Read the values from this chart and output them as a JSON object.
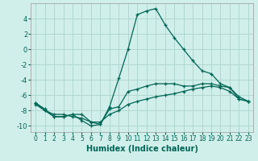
{
  "xlabel": "Humidex (Indice chaleur)",
  "xlim": [
    -0.5,
    23.5
  ],
  "ylim": [
    -10.8,
    6.0
  ],
  "yticks": [
    -10,
    -8,
    -6,
    -4,
    -2,
    0,
    2,
    4
  ],
  "xticks": [
    0,
    1,
    2,
    3,
    4,
    5,
    6,
    7,
    8,
    9,
    10,
    11,
    12,
    13,
    14,
    15,
    16,
    17,
    18,
    19,
    20,
    21,
    22,
    23
  ],
  "background_color": "#d0eeea",
  "grid_color": "#b0d8d0",
  "line_color": "#006655",
  "lines": [
    {
      "x": [
        0,
        1,
        2,
        3,
        4,
        5,
        6,
        7,
        8,
        9,
        10,
        11,
        12,
        13,
        14,
        15,
        16,
        17,
        18,
        19,
        20,
        21,
        22,
        23
      ],
      "y": [
        -7.0,
        -8.0,
        -8.8,
        -8.8,
        -8.5,
        -9.3,
        -10.0,
        -9.8,
        -7.5,
        -3.8,
        0.0,
        4.5,
        5.0,
        5.3,
        3.2,
        1.5,
        0.0,
        -1.5,
        -2.8,
        -3.2,
        -4.5,
        -5.0,
        -6.5,
        -6.8
      ]
    },
    {
      "x": [
        0,
        1,
        2,
        3,
        4,
        5,
        6,
        7,
        8,
        9,
        10,
        11,
        12,
        13,
        14,
        15,
        16,
        17,
        18,
        19,
        20,
        21,
        22,
        23
      ],
      "y": [
        -7.0,
        -7.8,
        -8.8,
        -8.8,
        -8.5,
        -8.5,
        -9.5,
        -9.8,
        -7.8,
        -7.5,
        -5.5,
        -5.2,
        -4.8,
        -4.5,
        -4.5,
        -4.5,
        -4.8,
        -4.8,
        -4.5,
        -4.5,
        -4.8,
        -5.0,
        -6.2,
        -6.8
      ]
    },
    {
      "x": [
        0,
        1,
        2,
        3,
        4,
        5,
        6,
        7,
        8,
        9,
        10,
        11,
        12,
        13,
        14,
        15,
        16,
        17,
        18,
        19,
        20,
        21,
        22,
        23
      ],
      "y": [
        -7.2,
        -8.0,
        -8.5,
        -8.5,
        -8.8,
        -9.0,
        -9.5,
        -9.5,
        -8.5,
        -8.0,
        -7.2,
        -6.8,
        -6.5,
        -6.2,
        -6.0,
        -5.8,
        -5.5,
        -5.2,
        -5.0,
        -4.8,
        -5.0,
        -5.5,
        -6.5,
        -6.8
      ]
    }
  ]
}
